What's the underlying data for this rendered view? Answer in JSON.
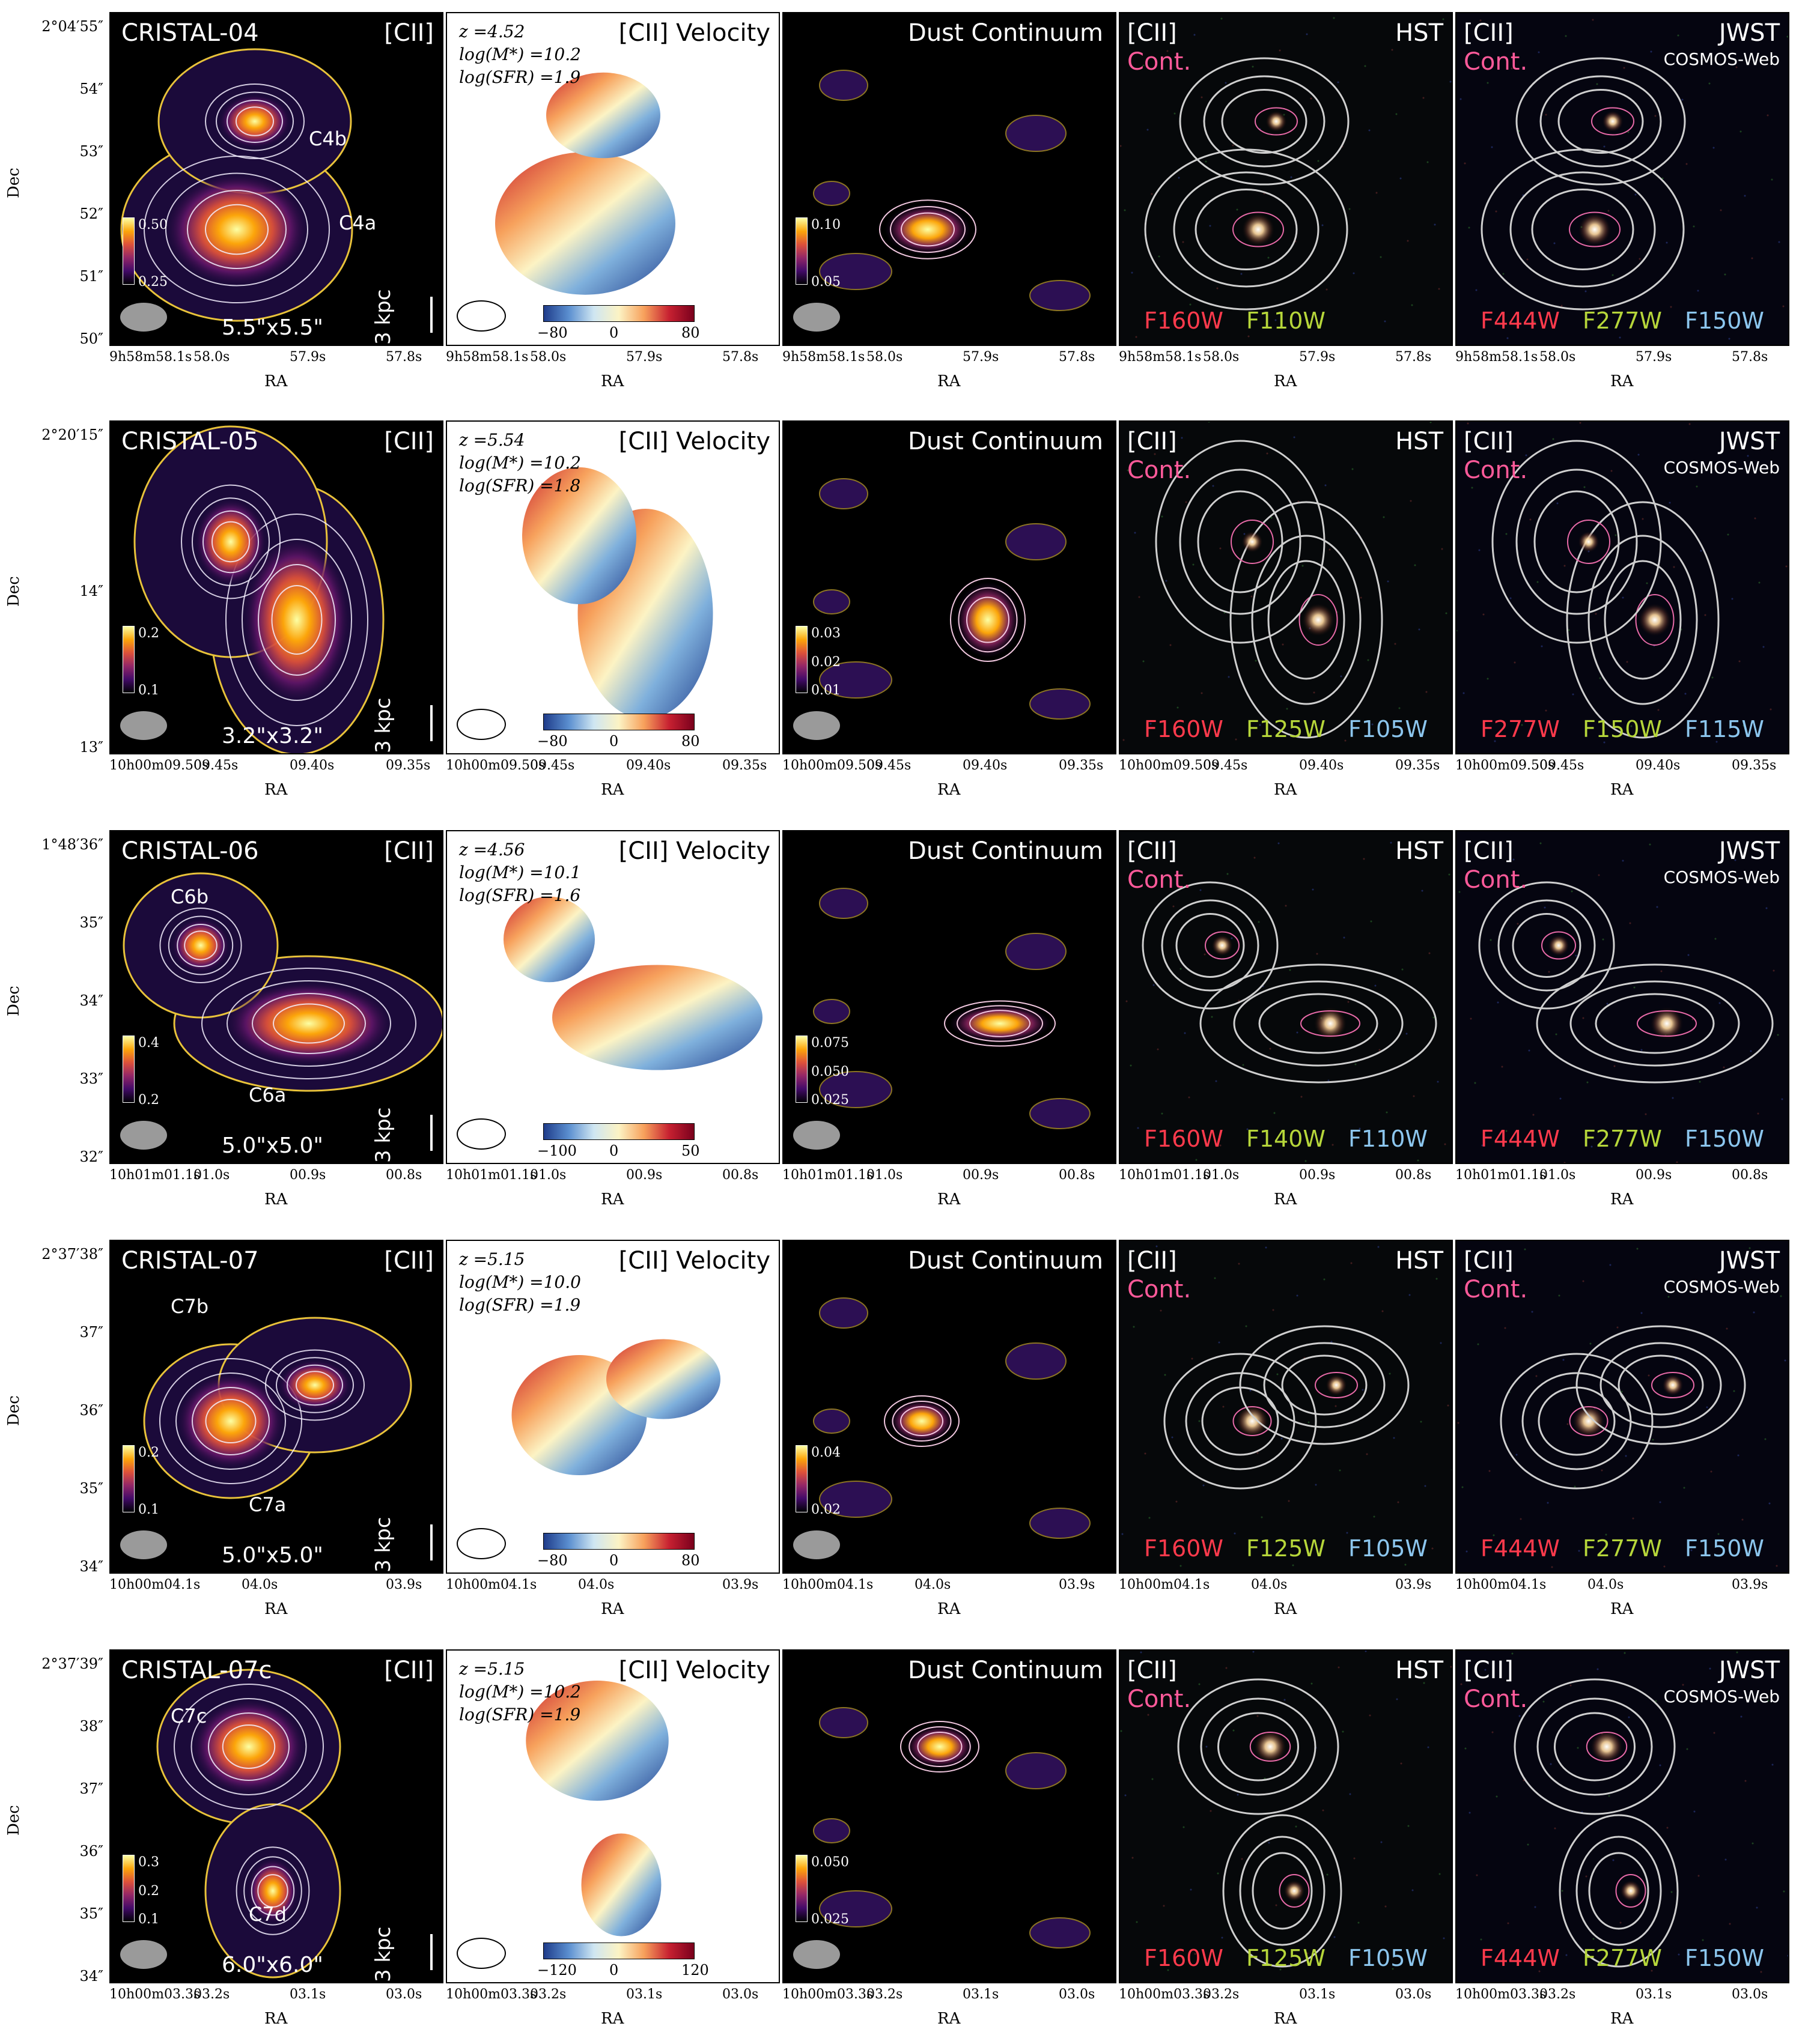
{
  "colors": {
    "cii_contour": "#e8c23a",
    "cii_inner_contour": "#f4f0ff",
    "hst_contour": "#cfcfcf",
    "cont_contour": "#e86aa8",
    "filter_red": "#ff3a4c",
    "filter_green": "#b6d63a",
    "filter_blue": "#8cc6ee",
    "cont_label": "#ff5a9a"
  },
  "common": {
    "cii": "[CII]",
    "velocity": "[CII] Velocity",
    "dust": "Dust Continuum",
    "cont": "Cont.",
    "hst": "HST",
    "jwst": "JWST",
    "cosmos": "COSMOS-Web",
    "ra_label": "RA",
    "dec_label": "Dec",
    "kpc": "3 kpc"
  },
  "rows": [
    {
      "name": "CRISTAL-04",
      "size": "5.5\"x5.5\"",
      "labels": [
        "C4b",
        "C4a"
      ],
      "z": "z =4.52",
      "mstar": "log(M*) =10.2",
      "sfr": "log(SFR) =1.9",
      "cii_cbar": [
        "0.50",
        "0.25"
      ],
      "dust_cbar": [
        "0.10",
        "0.05"
      ],
      "vel": [
        "−80",
        "0",
        "80"
      ],
      "hst_filters": [
        "F160W",
        "F110W",
        ""
      ],
      "jwst_filters": [
        "F444W",
        "F277W",
        "F150W"
      ],
      "dec_ticks": [
        "2°04′55″",
        "54″",
        "53″",
        "52″",
        "51″",
        "50″"
      ],
      "ra_ticks": [
        "9h58m58.1s",
        "58.0s",
        "57.9s",
        "57.8s"
      ]
    },
    {
      "name": "CRISTAL-05",
      "size": "3.2\"x3.2\"",
      "labels": [],
      "z": "z =5.54",
      "mstar": "log(M*) =10.2",
      "sfr": "log(SFR) =1.8",
      "cii_cbar": [
        "0.2",
        "0.1"
      ],
      "dust_cbar": [
        "0.03",
        "0.02",
        "0.01"
      ],
      "vel": [
        "−80",
        "0",
        "80"
      ],
      "hst_filters": [
        "F160W",
        "F125W",
        "F105W"
      ],
      "jwst_filters": [
        "F277W",
        "F150W",
        "F115W"
      ],
      "dec_ticks": [
        "2°20′15″",
        "14″",
        "13″"
      ],
      "ra_ticks": [
        "10h00m09.50s",
        "09.45s",
        "09.40s",
        "09.35s"
      ]
    },
    {
      "name": "CRISTAL-06",
      "size": "5.0\"x5.0\"",
      "labels": [
        "C6b",
        "C6a"
      ],
      "z": "z =4.56",
      "mstar": "log(M*) =10.1",
      "sfr": "log(SFR) =1.6",
      "cii_cbar": [
        "0.4",
        "0.2"
      ],
      "dust_cbar": [
        "0.075",
        "0.050",
        "0.025"
      ],
      "vel": [
        "−100",
        "0",
        "50"
      ],
      "hst_filters": [
        "F160W",
        "F140W",
        "F110W"
      ],
      "jwst_filters": [
        "F444W",
        "F277W",
        "F150W"
      ],
      "dec_ticks": [
        "1°48′36″",
        "35″",
        "34″",
        "33″",
        "32″"
      ],
      "ra_ticks": [
        "10h01m01.1s",
        "01.0s",
        "00.9s",
        "00.8s"
      ]
    },
    {
      "name": "CRISTAL-07",
      "size": "5.0\"x5.0\"",
      "labels": [
        "C7b",
        "C7a"
      ],
      "z": "z =5.15",
      "mstar": "log(M*) =10.0",
      "sfr": "log(SFR) =1.9",
      "cii_cbar": [
        "0.2",
        "0.1"
      ],
      "dust_cbar": [
        "0.04",
        "0.02"
      ],
      "vel": [
        "−80",
        "0",
        "80"
      ],
      "hst_filters": [
        "F160W",
        "F125W",
        "F105W"
      ],
      "jwst_filters": [
        "F444W",
        "F277W",
        "F150W"
      ],
      "dec_ticks": [
        "2°37′38″",
        "37″",
        "36″",
        "35″",
        "34″"
      ],
      "ra_ticks": [
        "10h00m04.1s",
        "04.0s",
        "03.9s"
      ]
    },
    {
      "name": "CRISTAL-07c",
      "size": "6.0\"x6.0\"",
      "labels": [
        "C7c",
        "C7d"
      ],
      "z": "z =5.15",
      "mstar": "log(M*) =10.2",
      "sfr": "log(SFR) =1.9",
      "cii_cbar": [
        "0.3",
        "0.2",
        "0.1"
      ],
      "dust_cbar": [
        "0.050",
        "0.025"
      ],
      "vel": [
        "−120",
        "0",
        "120"
      ],
      "hst_filters": [
        "F160W",
        "F125W",
        "F105W"
      ],
      "jwst_filters": [
        "F444W",
        "F277W",
        "F150W"
      ],
      "dec_ticks": [
        "2°37′39″",
        "38″",
        "37″",
        "36″",
        "35″",
        "34″"
      ],
      "ra_ticks": [
        "10h00m03.3s",
        "03.2s",
        "03.1s",
        "03.0s"
      ]
    }
  ]
}
